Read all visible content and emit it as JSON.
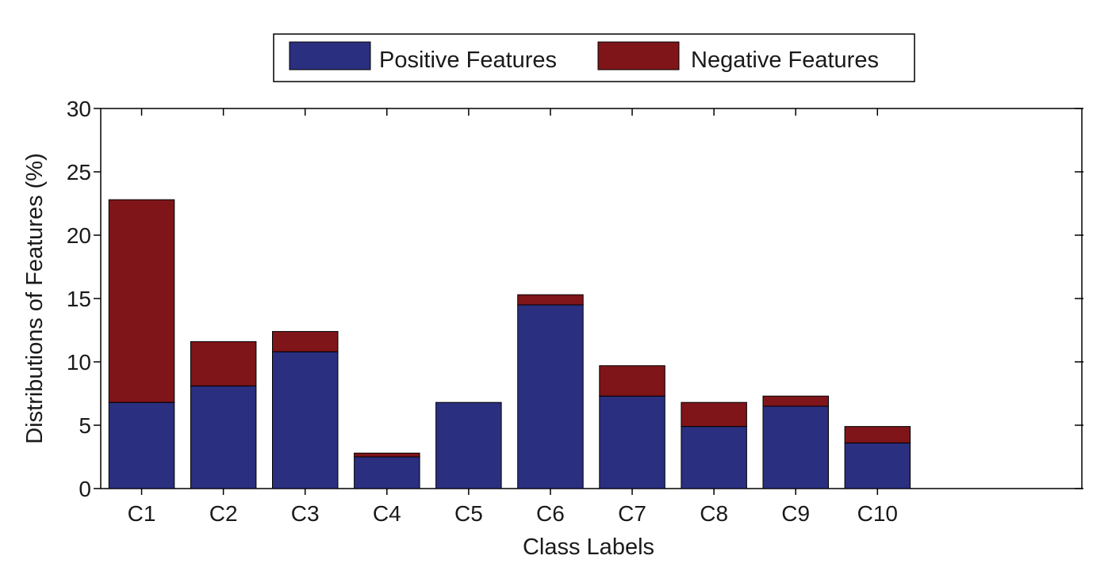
{
  "chart_data": {
    "type": "bar",
    "stacked": true,
    "xlabel": "Class Labels",
    "ylabel": "Distributions of Features (%)",
    "categories": [
      "C1",
      "C2",
      "C3",
      "C4",
      "C5",
      "C6",
      "C7",
      "C8",
      "C9",
      "C10"
    ],
    "ylim": [
      0,
      30
    ],
    "yticks": [
      "0",
      "5",
      "10",
      "15",
      "20",
      "25",
      "30"
    ],
    "xlim": [
      0.5,
      12.5
    ],
    "legend_position": "top",
    "series": [
      {
        "name": "Positive Features",
        "color": "#2b2f7f",
        "values": [
          6.8,
          8.1,
          10.8,
          2.5,
          6.8,
          14.5,
          7.3,
          4.9,
          6.5,
          3.6
        ]
      },
      {
        "name": "Negative Features",
        "color": "#7f1519",
        "values": [
          16.0,
          3.5,
          1.6,
          0.3,
          0.0,
          0.8,
          2.4,
          1.9,
          0.8,
          1.3
        ]
      }
    ]
  }
}
